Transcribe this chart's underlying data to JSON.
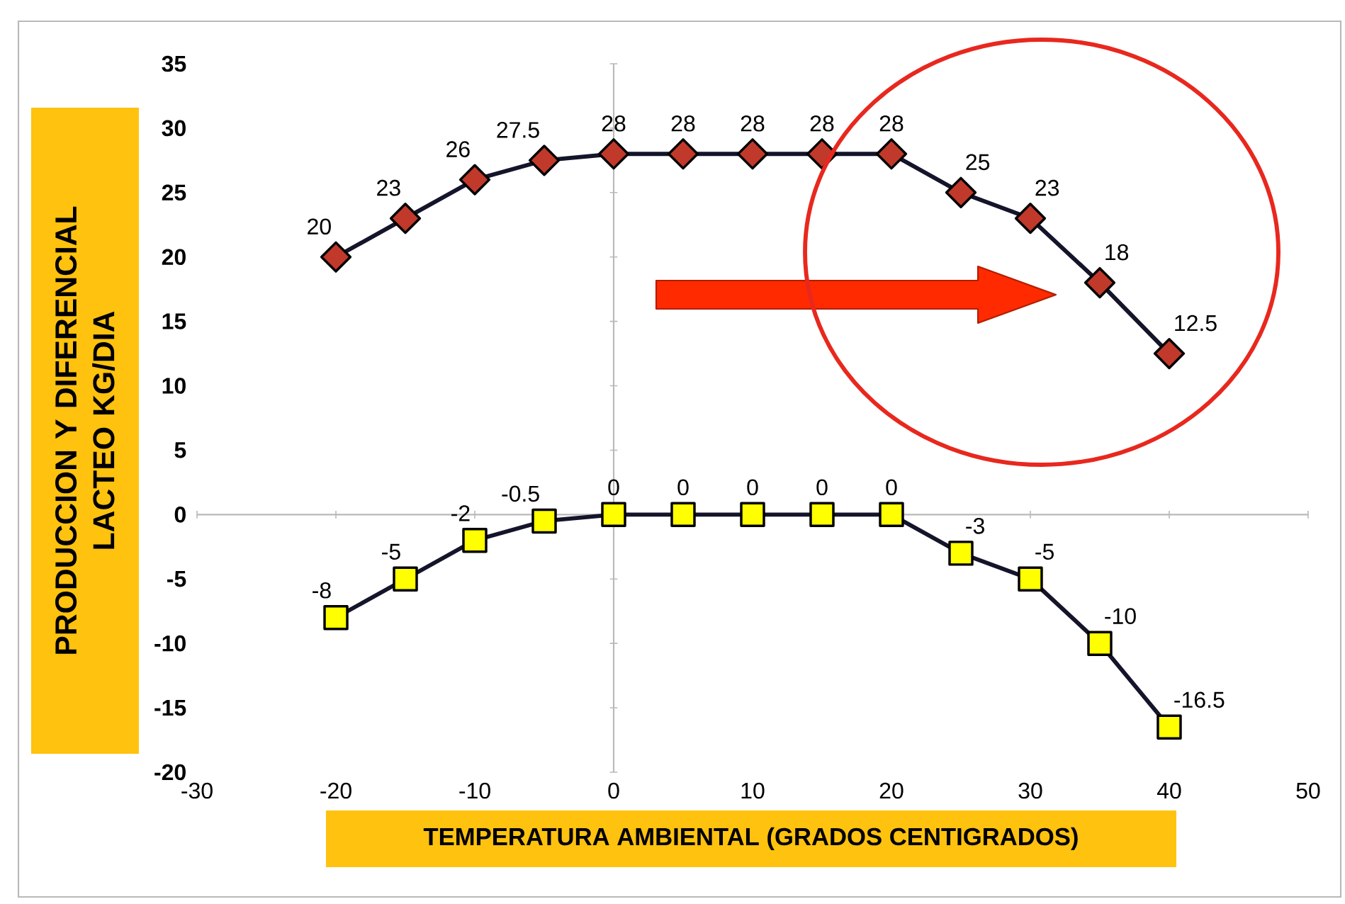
{
  "chart_data": {
    "type": "line",
    "xlabel": "TEMPERATURA AMBIENTAL (GRADOS CENTIGRADOS)",
    "ylabel": "PRODUCCION Y DIFERENCIAL LACTEO KG/DIA",
    "x": [
      -20,
      -15,
      -10,
      -5,
      0,
      5,
      10,
      15,
      20,
      25,
      30,
      35,
      40
    ],
    "series": [
      {
        "color": "#c0392b",
        "marker": "diamond",
        "values": [
          20,
          23,
          26,
          27.5,
          28,
          28,
          28,
          28,
          28,
          25,
          23,
          18,
          12.5
        ]
      },
      {
        "color": "#ffff00",
        "marker": "square",
        "values": [
          -8,
          -5,
          -2,
          -0.5,
          0,
          0,
          0,
          0,
          0,
          -3,
          -5,
          -10,
          -16.5
        ]
      }
    ],
    "xlim": [
      -30,
      50
    ],
    "xticks": [
      -30,
      -20,
      -10,
      0,
      10,
      20,
      30,
      40,
      50
    ],
    "ylim": [
      -20,
      35
    ],
    "yticks": [
      -20,
      -15,
      -10,
      -5,
      0,
      5,
      10,
      15,
      20,
      25,
      30,
      35
    ],
    "data_labels": true
  }
}
